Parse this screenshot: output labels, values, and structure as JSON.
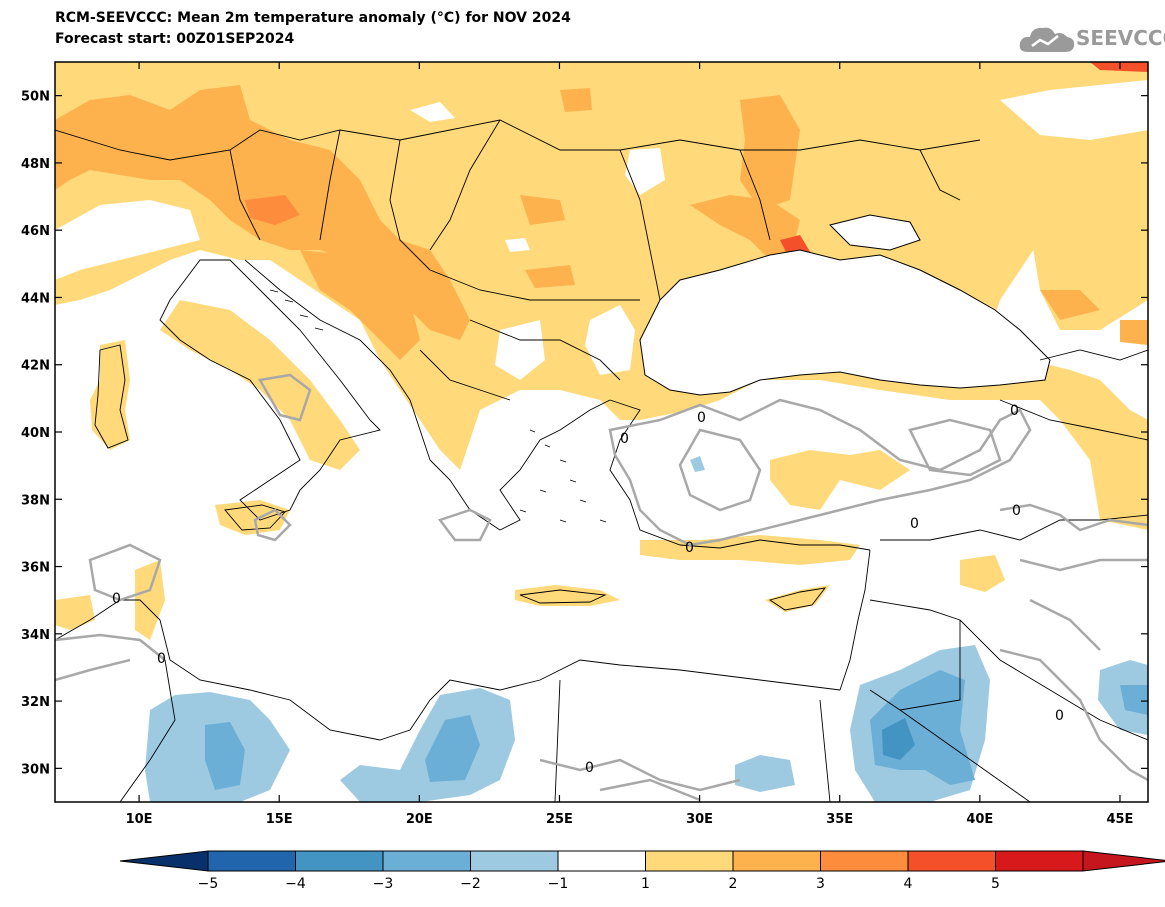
{
  "title_line1": "RCM-SEEVCCC: Mean 2m temperature anomaly (°C) for NOV 2024",
  "title_line2": "Forecast start: 00Z01SEP2024",
  "logo_text": "SEEVCCC",
  "map": {
    "lon_range": [
      7,
      46
    ],
    "lat_range": [
      29,
      51
    ],
    "contour_label": "0",
    "lon_ticks": [
      {
        "value": 10,
        "label": "10E"
      },
      {
        "value": 15,
        "label": "15E"
      },
      {
        "value": 20,
        "label": "20E"
      },
      {
        "value": 25,
        "label": "25E"
      },
      {
        "value": 30,
        "label": "30E"
      },
      {
        "value": 35,
        "label": "35E"
      },
      {
        "value": 40,
        "label": "40E"
      },
      {
        "value": 45,
        "label": "45E"
      }
    ],
    "lat_ticks": [
      {
        "value": 50,
        "label": "50N"
      },
      {
        "value": 48,
        "label": "48N"
      },
      {
        "value": 46,
        "label": "46N"
      },
      {
        "value": 44,
        "label": "44N"
      },
      {
        "value": 42,
        "label": "42N"
      },
      {
        "value": 40,
        "label": "40N"
      },
      {
        "value": 38,
        "label": "38N"
      },
      {
        "value": 36,
        "label": "36N"
      },
      {
        "value": 34,
        "label": "34N"
      },
      {
        "value": 32,
        "label": "32N"
      },
      {
        "value": 30,
        "label": "30N"
      }
    ]
  },
  "colorbar": {
    "labels": [
      "−5",
      "−4",
      "−3",
      "−2",
      "−1",
      "1",
      "2",
      "3",
      "4",
      "5"
    ],
    "colors": [
      "#2166ac",
      "#4393c3",
      "#6baed6",
      "#9ecae1",
      "#ffffff",
      "#ffd97a",
      "#fdb24e",
      "#fd8d3c",
      "#f4502a",
      "#d7191c"
    ],
    "extend_low_color": "#08306b",
    "extend_high_color": "#c4161c"
  }
}
